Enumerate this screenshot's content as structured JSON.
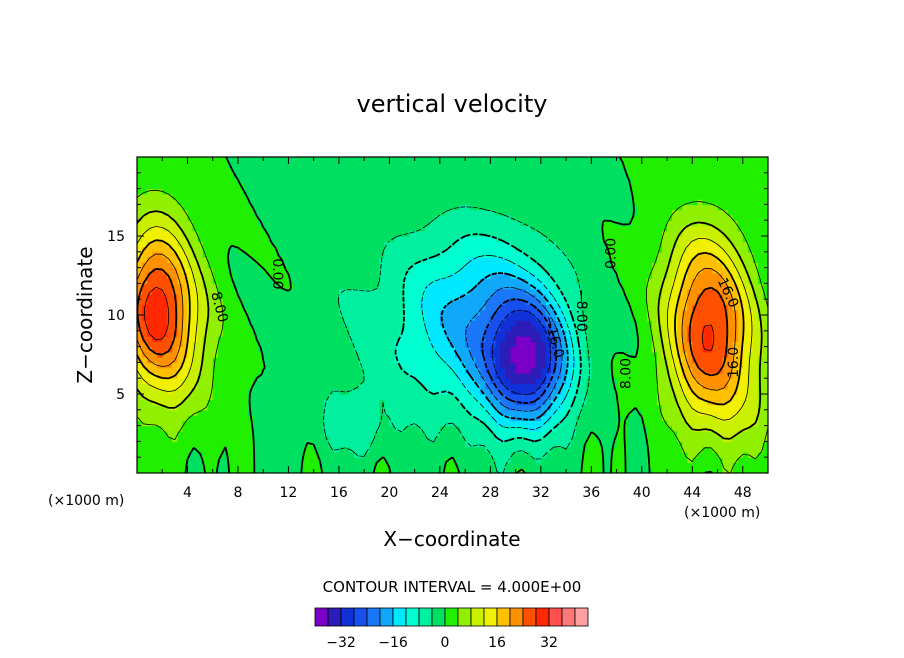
{
  "chart_data": {
    "type": "heatmap",
    "title": "vertical velocity",
    "xlabel": "X−coordinate",
    "ylabel": "Z−coordinate",
    "x_unit": "(×1000 m)",
    "y_unit": "(×1000 m)",
    "xlim": [
      0,
      50
    ],
    "ylim": [
      0,
      20
    ],
    "x_ticks": [
      4,
      8,
      12,
      16,
      20,
      24,
      28,
      32,
      36,
      40,
      44,
      48
    ],
    "y_ticks": [
      5,
      10,
      15
    ],
    "contour_interval_text": "CONTOUR INTERVAL = 4.000E+00",
    "contour_interval": 4,
    "contour_labels": [
      {
        "text": "8.00",
        "x": 6.5,
        "y": 10.5,
        "rot": 75
      },
      {
        "text": "0.00",
        "x": 11.1,
        "y": 12.6,
        "rot": 90
      },
      {
        "text": "0.00",
        "x": 37.6,
        "y": 13.9,
        "rot": -90
      },
      {
        "text": "−8.00",
        "x": 35.2,
        "y": 10.3,
        "rot": 90
      },
      {
        "text": "−16.0",
        "x": 33.0,
        "y": 8.6,
        "rot": 75
      },
      {
        "text": "8.00",
        "x": 38.8,
        "y": 6.3,
        "rot": -90
      },
      {
        "text": "16.0",
        "x": 46.8,
        "y": 11.4,
        "rot": 65
      },
      {
        "text": "16.0",
        "x": 47.3,
        "y": 7.0,
        "rot": -90
      }
    ],
    "colorbar": {
      "levels": [
        -36,
        -32,
        -28,
        -24,
        -20,
        -16,
        -12,
        -8,
        -4,
        0,
        4,
        8,
        12,
        16,
        20,
        24,
        28,
        32,
        36
      ],
      "colors": [
        "#7a00c8",
        "#2c1cb8",
        "#1030d8",
        "#1850f0",
        "#1a78f8",
        "#10a8f8",
        "#00e8ff",
        "#00ffd0",
        "#00f0a0",
        "#00e060",
        "#20f000",
        "#90f000",
        "#c8f000",
        "#f0f000",
        "#ffc000",
        "#ff9000",
        "#ff5000",
        "#ff2800",
        "#ff5050",
        "#ff7878",
        "#ffa0a0"
      ],
      "tick_labels": [
        "−32",
        "−16",
        "0",
        "16",
        "32"
      ],
      "tick_values": [
        -32,
        -16,
        0,
        16,
        32
      ]
    }
  }
}
